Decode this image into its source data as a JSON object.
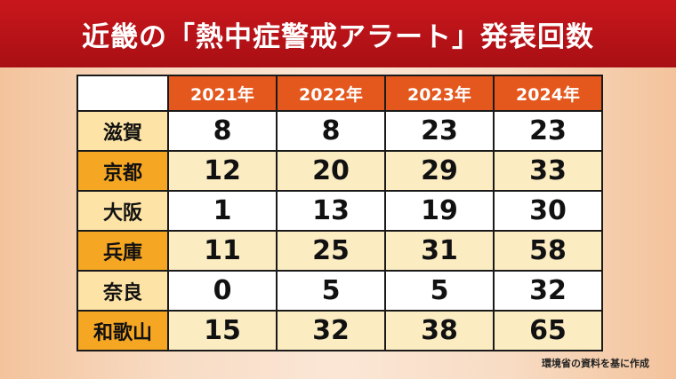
{
  "title": "近畿の「熱中症警戒アラート」発表回数",
  "source": "環境省の資料を基に作成",
  "colors": {
    "title_bg": "#c8171c",
    "header_bg": "#e4571d",
    "row_label_light": "#fde3a6",
    "row_label_dark": "#f5a623",
    "row_alt_bg": "#fbecc2"
  },
  "chart_data": {
    "type": "table",
    "title": "近畿の「熱中症警戒アラート」発表回数",
    "columns": [
      "2021年",
      "2022年",
      "2023年",
      "2024年"
    ],
    "rows": [
      {
        "label": "滋賀",
        "values": [
          8,
          8,
          23,
          23
        ]
      },
      {
        "label": "京都",
        "values": [
          12,
          20,
          29,
          33
        ]
      },
      {
        "label": "大阪",
        "values": [
          1,
          13,
          19,
          30
        ]
      },
      {
        "label": "兵庫",
        "values": [
          11,
          25,
          31,
          58
        ]
      },
      {
        "label": "奈良",
        "values": [
          0,
          5,
          5,
          32
        ]
      },
      {
        "label": "和歌山",
        "values": [
          15,
          32,
          38,
          65
        ]
      }
    ]
  }
}
